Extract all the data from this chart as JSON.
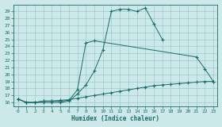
{
  "title": "",
  "xlabel": "Humidex (Indice chaleur)",
  "bg_color": "#cce8e8",
  "grid_color": "#99cccc",
  "line_color": "#1a6b6b",
  "ylim": [
    15.5,
    30.0
  ],
  "xlim": [
    -0.5,
    23.5
  ],
  "yticks": [
    16,
    17,
    18,
    19,
    20,
    21,
    22,
    23,
    24,
    25,
    26,
    27,
    28,
    29
  ],
  "xticks": [
    0,
    1,
    2,
    3,
    4,
    5,
    6,
    7,
    8,
    9,
    10,
    11,
    12,
    13,
    14,
    15,
    16,
    17,
    18,
    19,
    20,
    21,
    22,
    23
  ],
  "line1_x": [
    0,
    1,
    2,
    3,
    4,
    5,
    6,
    7,
    8,
    9,
    10,
    11,
    12,
    13,
    14,
    15,
    16,
    17
  ],
  "line1_y": [
    16.5,
    16.0,
    16.0,
    16.0,
    16.0,
    16.0,
    16.2,
    17.2,
    18.5,
    20.5,
    23.5,
    29.0,
    29.3,
    29.3,
    29.0,
    29.5,
    27.2,
    25.0
  ],
  "line2_x": [
    0,
    1,
    2,
    3,
    4,
    5,
    6,
    7,
    8,
    9,
    21,
    22,
    23
  ],
  "line2_y": [
    16.5,
    16.0,
    16.0,
    16.2,
    16.2,
    16.2,
    16.3,
    17.8,
    24.5,
    24.8,
    22.5,
    20.8,
    19.0
  ],
  "line3_x": [
    0,
    1,
    2,
    3,
    4,
    5,
    6,
    7,
    8,
    9,
    10,
    11,
    12,
    13,
    14,
    15,
    16,
    17,
    18,
    19,
    20,
    21,
    22,
    23
  ],
  "line3_y": [
    16.5,
    16.0,
    16.0,
    16.2,
    16.2,
    16.3,
    16.4,
    16.6,
    16.8,
    17.0,
    17.2,
    17.4,
    17.6,
    17.8,
    18.0,
    18.2,
    18.4,
    18.5,
    18.6,
    18.7,
    18.8,
    18.9,
    19.0,
    19.0
  ]
}
